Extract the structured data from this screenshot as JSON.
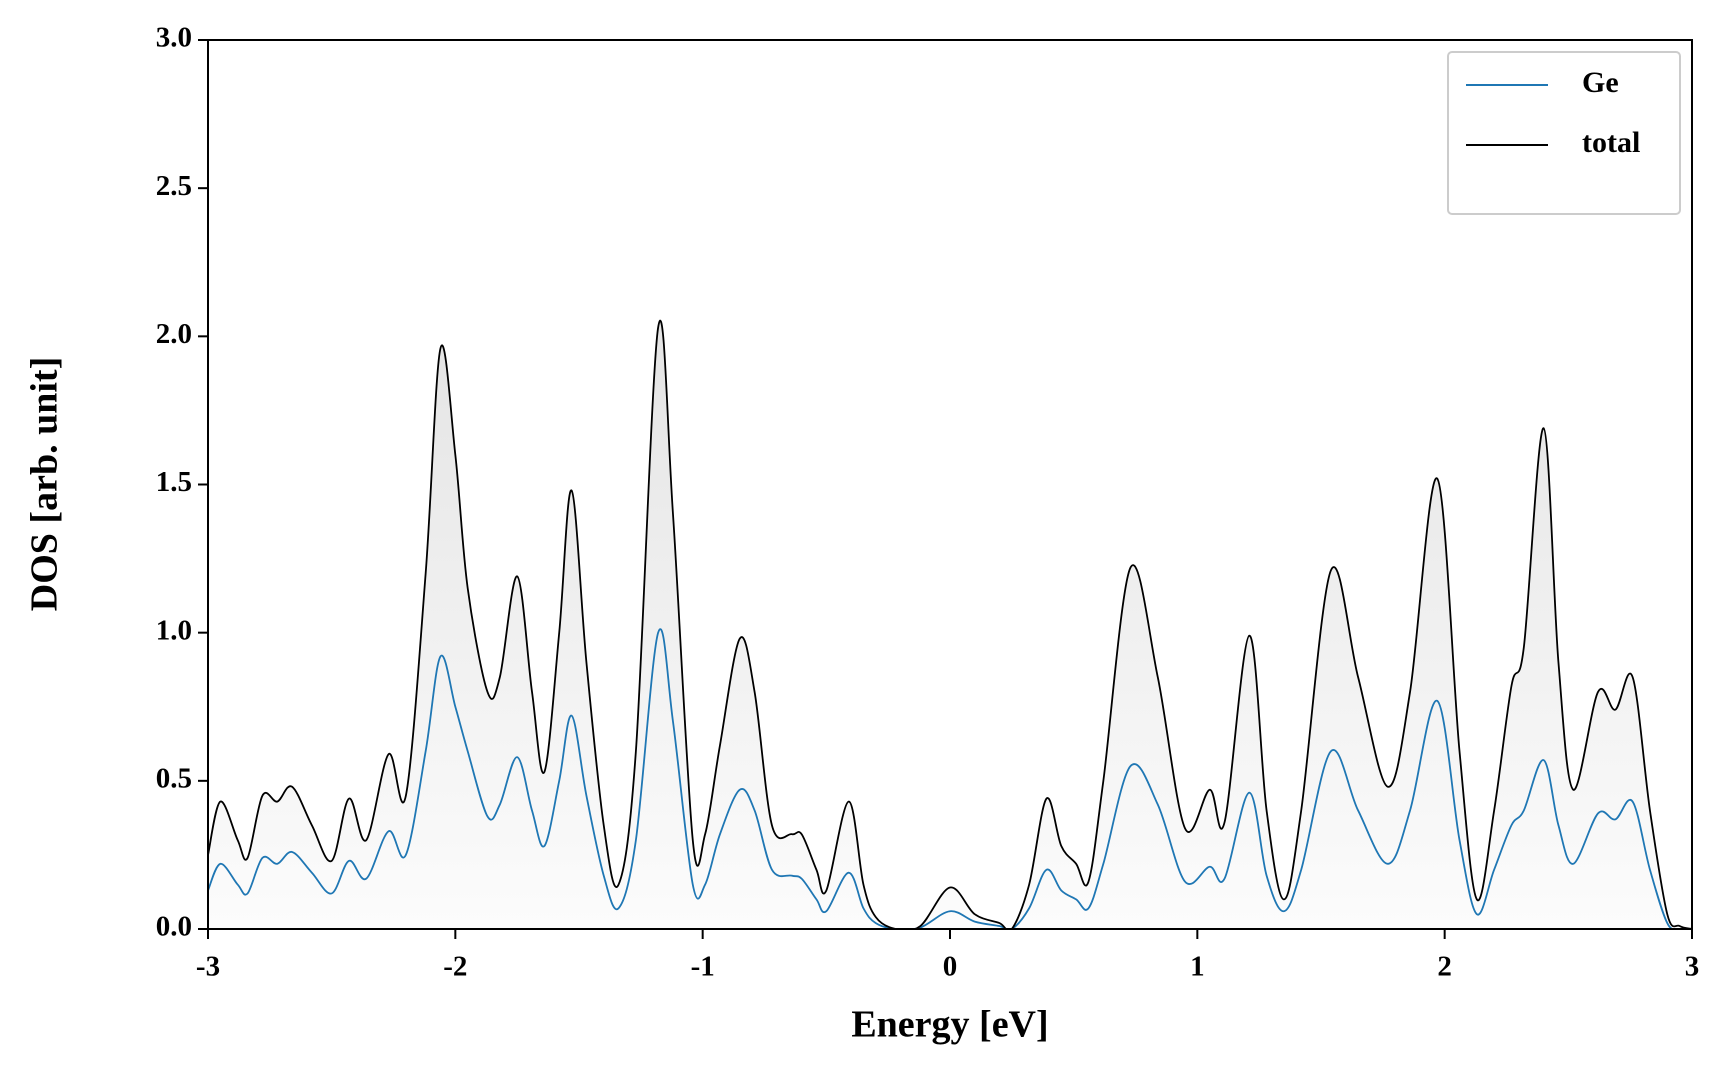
{
  "chart_data": {
    "type": "line",
    "xlabel": "Energy [eV]",
    "ylabel": "DOS [arb. unit]",
    "x": [
      -3.0,
      -2.95,
      -2.88,
      -2.84,
      -2.78,
      -2.72,
      -2.66,
      -2.58,
      -2.5,
      -2.43,
      -2.36,
      -2.27,
      -2.2,
      -2.12,
      -2.06,
      -2.0,
      -1.95,
      -1.87,
      -1.82,
      -1.75,
      -1.69,
      -1.64,
      -1.58,
      -1.53,
      -1.47,
      -1.4,
      -1.34,
      -1.27,
      -1.18,
      -1.12,
      -1.04,
      -0.99,
      -0.93,
      -0.85,
      -0.79,
      -0.72,
      -0.64,
      -0.6,
      -0.54,
      -0.5,
      -0.41,
      -0.35,
      -0.3,
      -0.22,
      -0.12,
      0.0,
      0.1,
      0.2,
      0.25,
      0.32,
      0.39,
      0.45,
      0.51,
      0.56,
      0.62,
      0.73,
      0.84,
      0.95,
      1.05,
      1.11,
      1.21,
      1.28,
      1.35,
      1.42,
      1.54,
      1.65,
      1.77,
      1.86,
      1.97,
      2.06,
      2.13,
      2.2,
      2.27,
      2.32,
      2.4,
      2.46,
      2.52,
      2.62,
      2.69,
      2.76,
      2.83,
      2.9,
      2.95,
      3.0
    ],
    "series": [
      {
        "name": "Ge",
        "color": "#1f77b4",
        "values": [
          0.13,
          0.22,
          0.15,
          0.12,
          0.24,
          0.22,
          0.26,
          0.19,
          0.12,
          0.23,
          0.17,
          0.33,
          0.25,
          0.6,
          0.92,
          0.75,
          0.6,
          0.38,
          0.42,
          0.58,
          0.4,
          0.28,
          0.5,
          0.72,
          0.45,
          0.18,
          0.07,
          0.3,
          1.0,
          0.7,
          0.15,
          0.15,
          0.32,
          0.47,
          0.4,
          0.2,
          0.18,
          0.17,
          0.1,
          0.06,
          0.19,
          0.07,
          0.02,
          0.0,
          0.005,
          0.06,
          0.025,
          0.01,
          0.0,
          0.07,
          0.2,
          0.13,
          0.1,
          0.07,
          0.22,
          0.55,
          0.42,
          0.16,
          0.21,
          0.17,
          0.46,
          0.18,
          0.06,
          0.2,
          0.6,
          0.4,
          0.22,
          0.4,
          0.77,
          0.3,
          0.05,
          0.2,
          0.35,
          0.4,
          0.57,
          0.35,
          0.22,
          0.39,
          0.37,
          0.43,
          0.2,
          0.02,
          0.0,
          0.0
        ]
      },
      {
        "name": "total",
        "color": "#000000",
        "fill": true,
        "values": [
          0.25,
          0.43,
          0.3,
          0.24,
          0.45,
          0.43,
          0.48,
          0.35,
          0.23,
          0.44,
          0.3,
          0.59,
          0.45,
          1.2,
          1.96,
          1.6,
          1.15,
          0.8,
          0.85,
          1.19,
          0.8,
          0.53,
          1.0,
          1.48,
          0.9,
          0.35,
          0.15,
          0.6,
          2.03,
          1.4,
          0.3,
          0.32,
          0.62,
          0.98,
          0.8,
          0.35,
          0.32,
          0.32,
          0.2,
          0.13,
          0.43,
          0.15,
          0.04,
          0.0,
          0.01,
          0.14,
          0.05,
          0.02,
          0.0,
          0.15,
          0.44,
          0.28,
          0.22,
          0.16,
          0.5,
          1.22,
          0.85,
          0.34,
          0.47,
          0.36,
          0.99,
          0.4,
          0.1,
          0.4,
          1.21,
          0.85,
          0.48,
          0.8,
          1.52,
          0.6,
          0.1,
          0.4,
          0.82,
          0.95,
          1.69,
          0.9,
          0.47,
          0.8,
          0.74,
          0.85,
          0.4,
          0.05,
          0.01,
          0.0
        ]
      }
    ],
    "xlim": [
      -3,
      3
    ],
    "xticks": [
      -3,
      -2,
      -1,
      0,
      1,
      2,
      3
    ],
    "ylim": [
      0,
      3
    ],
    "yticks": [
      {
        "value": 0,
        "label": "0.0"
      },
      0.5,
      {
        "value": 1,
        "label": "1.0"
      },
      1.5,
      {
        "value": 2,
        "label": "2.0"
      },
      2.5,
      {
        "value": 3,
        "label": "3.0"
      }
    ],
    "legend": "upper right"
  }
}
